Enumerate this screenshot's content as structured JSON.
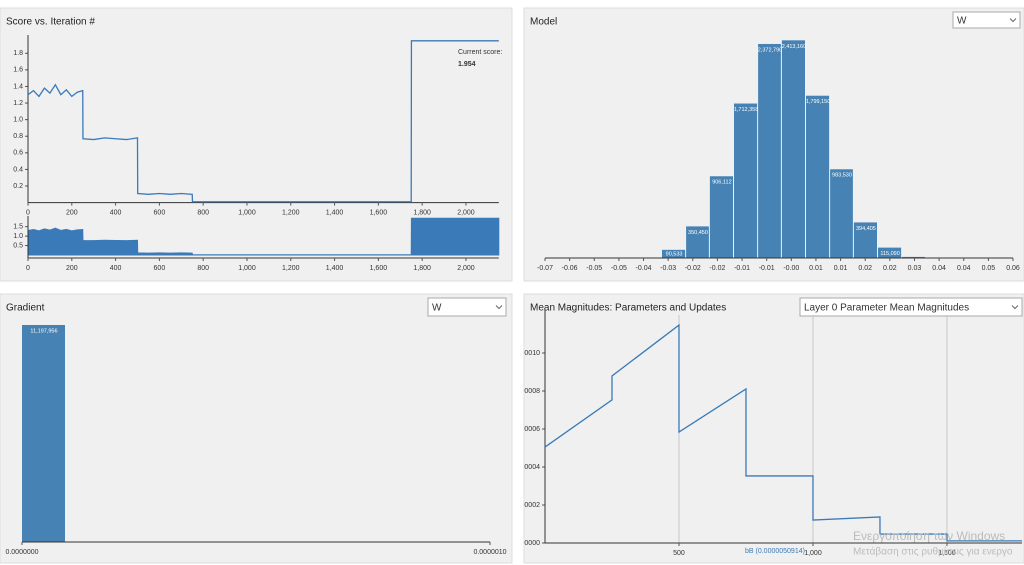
{
  "chart_data": [
    {
      "type": "line",
      "title": "Score vs. Iteration #",
      "color": "#3a7ab8",
      "x": [
        0,
        25,
        50,
        75,
        100,
        125,
        150,
        175,
        200,
        225,
        250,
        251,
        300,
        350,
        400,
        450,
        500,
        501,
        550,
        600,
        650,
        700,
        750,
        751,
        1000,
        1250,
        1500,
        1750,
        1751,
        1900,
        2000,
        2150
      ],
      "values": [
        1.3,
        1.35,
        1.28,
        1.38,
        1.32,
        1.42,
        1.3,
        1.36,
        1.28,
        1.33,
        1.35,
        0.77,
        0.76,
        0.78,
        0.77,
        0.76,
        0.78,
        0.11,
        0.1,
        0.11,
        0.1,
        0.11,
        0.1,
        0.01,
        0.01,
        0.01,
        0.01,
        0.01,
        1.95,
        1.95,
        1.95,
        1.95
      ],
      "xlim": [
        0,
        2150
      ],
      "ylim": [
        0,
        1.96
      ],
      "xticks": [
        0,
        200,
        400,
        600,
        800,
        {
          "value": 1000,
          "label": "1,000"
        },
        {
          "value": 1200,
          "label": "1,200"
        },
        {
          "value": 1400,
          "label": "1,400"
        },
        {
          "value": 1600,
          "label": "1,600"
        },
        {
          "value": 1800,
          "label": "1,800"
        },
        {
          "value": 2000,
          "label": "2,000"
        }
      ],
      "yticks": [
        0.2,
        0.4,
        0.6,
        0.8,
        {
          "value": 1,
          "label": "1.0"
        },
        1.2,
        1.4,
        1.6,
        1.8
      ],
      "overview_yticks": [
        0.5,
        {
          "value": 1,
          "label": "1.0"
        },
        1.5
      ],
      "current_score_label": "Current score:",
      "current_score": 1.954
    },
    {
      "type": "histogram",
      "title": "Model",
      "selector": "W",
      "color": "#4682b4",
      "bins": [
        -0.0375,
        -0.0308,
        -0.0242,
        -0.0175,
        -0.0108,
        -0.0042,
        0.0025,
        0.0092,
        0.0158,
        0.0225,
        0.0292,
        0.0358
      ],
      "values": [
        90533,
        350450,
        906112,
        1712358,
        2372790,
        2413160,
        1799150,
        983530,
        394405,
        115090,
        12000
      ],
      "value_labels": [
        "90,533",
        "350,450",
        "906,112",
        "1,712,358",
        "2,372,790",
        "2,413,160",
        "1,799,150",
        "983,530",
        "394,405",
        "115,090",
        null
      ],
      "xlim": [
        -0.07,
        0.06
      ],
      "ylim": [
        0,
        2450000
      ],
      "xticks": [
        {
          "value": -0.07,
          "label": "-0.07"
        },
        {
          "value": -0.06316,
          "label": "-0.06"
        },
        {
          "value": -0.05632,
          "label": "-0.05"
        },
        {
          "value": -0.04947,
          "label": "-0.05"
        },
        {
          "value": -0.04263,
          "label": "-0.04"
        },
        {
          "value": -0.03579,
          "label": "-0.03"
        },
        {
          "value": -0.02895,
          "label": "-0.02"
        },
        {
          "value": -0.02211,
          "label": "-0.02"
        },
        {
          "value": -0.01526,
          "label": "-0.01"
        },
        {
          "value": -0.00842,
          "label": "-0.01"
        },
        {
          "value": -0.00158,
          "label": "-0.00"
        },
        {
          "value": 0.00526,
          "label": "0.01"
        },
        {
          "value": 0.01211,
          "label": "0.01"
        },
        {
          "value": 0.01895,
          "label": "0.02"
        },
        {
          "value": 0.02579,
          "label": "0.02"
        },
        {
          "value": 0.03263,
          "label": "0.03"
        },
        {
          "value": 0.03947,
          "label": "0.04"
        },
        {
          "value": 0.04632,
          "label": "0.04"
        },
        {
          "value": 0.05316,
          "label": "0.05"
        },
        {
          "value": 0.06,
          "label": "0.06"
        }
      ]
    },
    {
      "type": "histogram",
      "title": "Gradient",
      "selector": "W",
      "color": "#4682b4",
      "bins": [
        0,
        9.4e-08
      ],
      "values": [
        11197956
      ],
      "value_labels": [
        "11,197,956"
      ],
      "xlim": [
        0,
        1e-06
      ],
      "ylim": [
        0,
        11197956
      ],
      "xticks": [
        {
          "value": 0,
          "label": "0.0000000"
        },
        {
          "value": 1e-06,
          "label": "0.0000010"
        }
      ]
    },
    {
      "type": "line",
      "title": "Mean Magnitudes: Parameters and Updates",
      "selector": "Layer 0 Parameter Mean Magnitudes",
      "grid": "x",
      "series": [
        {
          "name": "bB (0.0000050914)",
          "color": "#3a7ab8",
          "x": [
            0,
            250,
            250,
            500,
            500,
            750,
            750,
            1000,
            1000,
            1250,
            1250,
            1500,
            1500,
            1780
          ],
          "values": [
            5.05e-05,
            7.53e-05,
            8.79e-05,
            0.0001147,
            5.84e-05,
            8.11e-05,
            3.53e-05,
            3.53e-05,
            1.21e-05,
            1.37e-05,
            4.7e-06,
            4.7e-06,
            1.1e-06,
            1.1e-06
          ]
        }
      ],
      "xlim": [
        0,
        1780
      ],
      "ylim": [
        0,
        0.00012
      ],
      "xticks": [
        500,
        {
          "value": 1000,
          "label": "1,000"
        },
        {
          "value": 1500,
          "label": "1,500"
        }
      ],
      "yticks": [
        {
          "value": 0,
          "label": "0.00000"
        },
        2e-05,
        4e-05,
        6e-05,
        8e-05,
        {
          "value": 0.0001,
          "label": "0.00010"
        }
      ]
    }
  ],
  "watermark": [
    "Ενεργοποίηση των Windows",
    "Μετάβαση στις ρυθμίσεις για ενεργο"
  ]
}
